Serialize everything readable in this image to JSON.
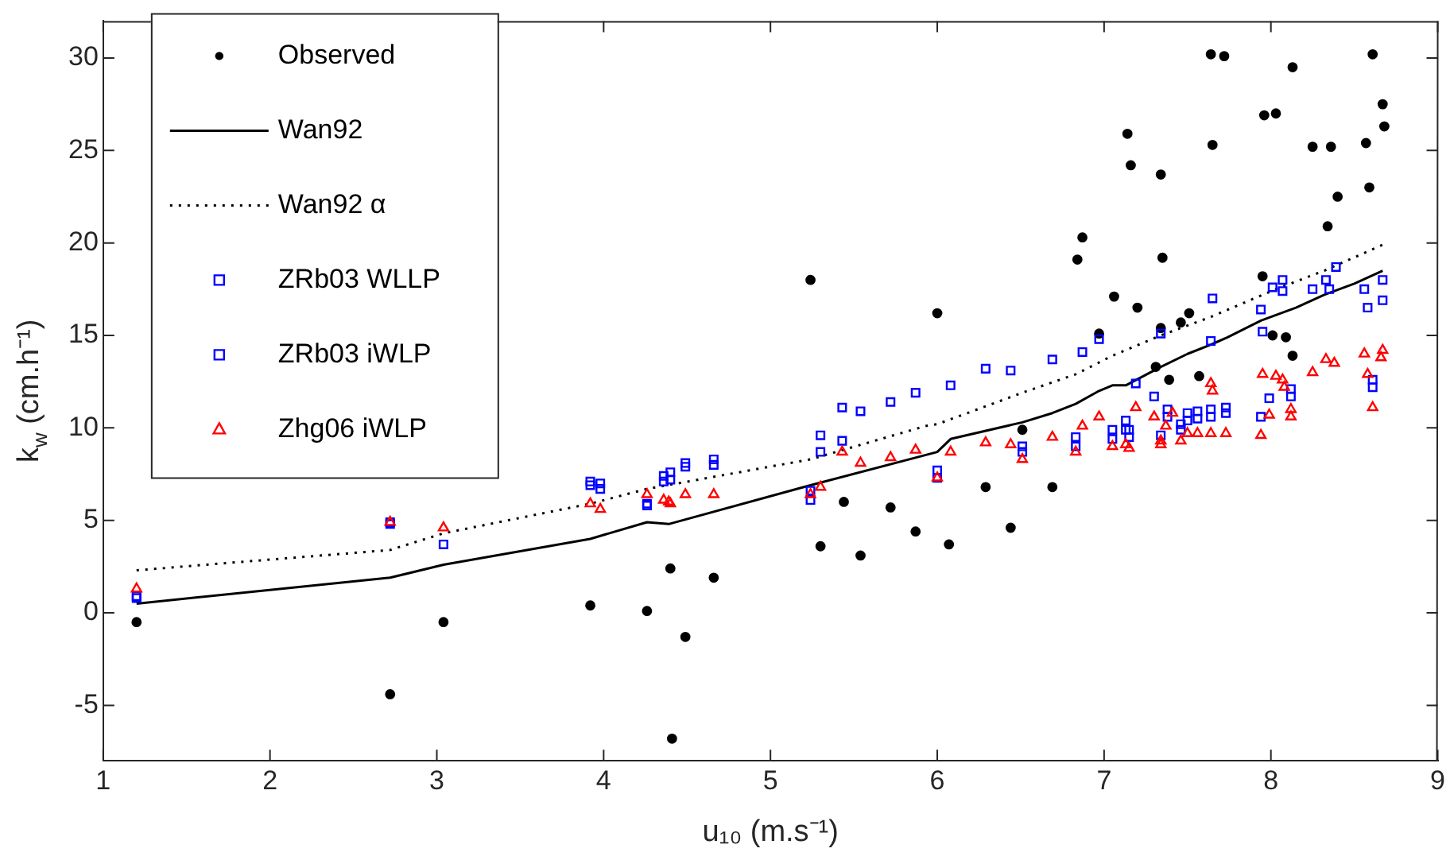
{
  "chart_data": {
    "type": "scatter",
    "xlabel": "u₁₀ (m.s⁻¹)",
    "ylabel": "k$_{w}$ (cm.h⁻¹)",
    "xlim": [
      1,
      9
    ],
    "xticks": [
      1,
      2,
      3,
      4,
      5,
      6,
      7,
      8,
      9
    ],
    "ylim": [
      -8,
      32
    ],
    "yticks": [
      -5,
      0,
      5,
      10,
      15,
      20,
      25,
      30
    ],
    "legend": "top left",
    "series": [
      {
        "name": "Observed",
        "type": "scatter",
        "marker": "circle",
        "color": "#000000",
        "x": [
          1.2,
          2.72,
          3.04,
          3.92,
          4.26,
          4.4,
          4.41,
          4.49,
          4.66,
          5.24,
          5.3,
          5.44,
          5.54,
          5.72,
          5.87,
          6.0,
          6.07,
          6.29,
          6.44,
          6.51,
          6.69,
          6.84,
          6.87,
          6.97,
          7.06,
          7.14,
          7.16,
          7.2,
          7.34,
          7.35,
          7.34,
          7.31,
          7.39,
          7.46,
          7.51,
          7.57,
          7.64,
          7.65,
          7.72,
          7.95,
          7.96,
          8.01,
          8.03,
          8.09,
          8.13,
          8.13,
          8.25,
          8.34,
          8.36,
          8.4,
          8.57,
          8.59,
          8.61,
          8.67,
          8.68
        ],
        "values": [
          -0.5,
          -4.4,
          -0.5,
          0.4,
          0.1,
          2.4,
          -6.8,
          -1.3,
          1.9,
          18.0,
          3.6,
          6.0,
          3.1,
          5.7,
          4.4,
          16.2,
          3.7,
          6.8,
          4.6,
          9.9,
          6.8,
          19.1,
          20.3,
          15.1,
          17.1,
          25.9,
          24.2,
          16.5,
          23.7,
          19.2,
          15.4,
          13.3,
          12.6,
          15.7,
          16.2,
          12.8,
          30.2,
          25.3,
          30.1,
          18.2,
          26.9,
          15.0,
          27.0,
          14.9,
          13.9,
          29.5,
          25.2,
          20.9,
          25.2,
          22.5,
          25.4,
          23.0,
          30.2,
          27.5,
          26.3
        ]
      },
      {
        "name": "Wan92",
        "type": "line",
        "marker": "none",
        "line_style": "solid",
        "color": "#000000",
        "x": [
          1.2,
          2.72,
          3.04,
          3.92,
          4.26,
          4.39,
          5.24,
          6.0,
          6.08,
          6.51,
          6.69,
          6.83,
          6.97,
          7.05,
          7.13,
          7.34,
          7.5,
          7.64,
          7.74,
          7.94,
          8.03,
          8.15,
          8.32,
          8.5,
          8.67
        ],
        "values": [
          0.5,
          1.9,
          2.6,
          4.0,
          4.9,
          4.8,
          6.9,
          8.7,
          9.4,
          10.3,
          10.8,
          11.3,
          12.0,
          12.3,
          12.3,
          13.3,
          14.0,
          14.5,
          14.9,
          15.8,
          16.1,
          16.5,
          17.2,
          17.8,
          18.5
        ]
      },
      {
        "name": "Wan92 α",
        "type": "line",
        "marker": "none",
        "line_style": "dotted",
        "color": "#000000",
        "x": [
          1.2,
          2.72,
          3.04,
          3.92,
          4.26,
          5.24,
          5.93,
          6.0,
          6.51,
          6.83,
          7.05,
          7.34,
          7.64,
          8.03,
          8.32,
          8.67
        ],
        "values": [
          2.3,
          3.4,
          4.3,
          5.9,
          6.7,
          8.3,
          10.1,
          10.2,
          11.9,
          12.9,
          13.9,
          15.0,
          16.0,
          17.5,
          18.5,
          19.9
        ]
      },
      {
        "name": "ZRb03 WLLP",
        "type": "scatter",
        "marker": "square",
        "color": "#0000ff",
        "x": [
          1.2,
          2.72,
          3.04,
          3.92,
          3.98,
          4.26,
          4.36,
          4.4,
          4.49,
          4.66,
          5.24,
          5.3,
          5.43,
          6.0,
          6.51,
          6.83,
          7.05,
          7.13,
          7.15,
          7.34,
          7.38,
          7.46,
          7.5,
          7.56,
          7.64,
          7.73,
          7.94,
          8.12,
          8.61
        ],
        "values": [
          0.8,
          4.8,
          null,
          6.9,
          6.7,
          5.8,
          7.1,
          7.2,
          7.9,
          8.0,
          6.1,
          8.7,
          9.3,
          7.3,
          8.7,
          9.0,
          9.4,
          9.9,
          9.5,
          9.6,
          10.6,
          9.9,
          10.4,
          10.5,
          10.6,
          10.8,
          10.6,
          11.7,
          12.2
        ]
      },
      {
        "name": "ZRb03 iWLP",
        "type": "scatter",
        "marker": "square",
        "color": "#0000ff",
        "x": [
          1.2,
          2.72,
          3.04,
          3.92,
          3.98,
          4.26,
          4.36,
          4.4,
          4.49,
          4.66,
          5.24,
          5.3,
          5.43,
          5.54,
          5.72,
          5.87,
          6.0,
          6.08,
          6.29,
          6.44,
          6.51,
          6.69,
          6.87,
          6.97,
          6.83,
          7.05,
          7.13,
          7.15,
          7.19,
          7.3,
          7.34,
          7.38,
          7.46,
          7.5,
          7.56,
          7.64,
          7.64,
          7.65,
          7.73,
          7.94,
          7.95,
          7.99,
          8.01,
          8.07,
          8.07,
          8.12,
          8.25,
          8.33,
          8.35,
          8.39,
          8.56,
          8.58,
          8.61,
          8.67,
          8.67
        ],
        "values": [
          0.9,
          4.9,
          3.7,
          7.1,
          7.0,
          5.9,
          7.4,
          7.6,
          8.1,
          8.3,
          6.6,
          9.6,
          11.1,
          10.9,
          11.4,
          11.9,
          7.7,
          12.3,
          13.2,
          13.1,
          9.0,
          13.7,
          14.1,
          14.8,
          9.5,
          9.9,
          10.4,
          9.9,
          12.4,
          11.7,
          15.1,
          11.0,
          10.2,
          10.8,
          10.9,
          11.0,
          14.7,
          17.0,
          11.1,
          16.4,
          15.2,
          11.6,
          17.6,
          18.0,
          17.4,
          12.1,
          17.5,
          18.0,
          17.5,
          18.7,
          17.5,
          16.5,
          12.6,
          18.0,
          16.9
        ]
      },
      {
        "name": "Zhg06 iWLP",
        "type": "scatter",
        "marker": "triangle",
        "color": "#ff0000",
        "x": [
          1.2,
          2.72,
          3.04,
          3.92,
          3.98,
          4.26,
          4.36,
          4.39,
          4.4,
          4.49,
          4.66,
          5.24,
          5.3,
          5.43,
          5.54,
          5.72,
          5.87,
          6.0,
          6.08,
          6.29,
          6.44,
          6.51,
          6.69,
          6.83,
          6.87,
          6.97,
          7.05,
          7.13,
          7.15,
          7.19,
          7.3,
          7.34,
          7.34,
          7.37,
          7.41,
          7.46,
          7.5,
          7.56,
          7.64,
          7.64,
          7.65,
          7.73,
          7.94,
          7.95,
          7.99,
          8.03,
          8.07,
          8.08,
          8.12,
          8.12,
          8.25,
          8.33,
          8.38,
          8.56,
          8.58,
          8.61,
          8.67,
          8.66
        ],
        "values": [
          1.3,
          4.9,
          4.6,
          5.9,
          5.6,
          6.4,
          6.1,
          6.0,
          5.9,
          6.4,
          6.4,
          6.4,
          6.8,
          8.7,
          8.1,
          8.4,
          8.8,
          7.3,
          8.7,
          9.2,
          9.1,
          8.3,
          9.5,
          8.7,
          10.1,
          10.6,
          9.0,
          9.1,
          8.9,
          11.1,
          10.6,
          9.1,
          9.3,
          10.1,
          10.8,
          9.3,
          9.7,
          9.7,
          9.7,
          12.4,
          12.0,
          9.7,
          9.6,
          12.9,
          10.7,
          12.8,
          12.6,
          12.2,
          11.0,
          10.6,
          13.0,
          13.7,
          13.5,
          14.0,
          12.9,
          11.1,
          14.2,
          13.8
        ]
      }
    ]
  }
}
